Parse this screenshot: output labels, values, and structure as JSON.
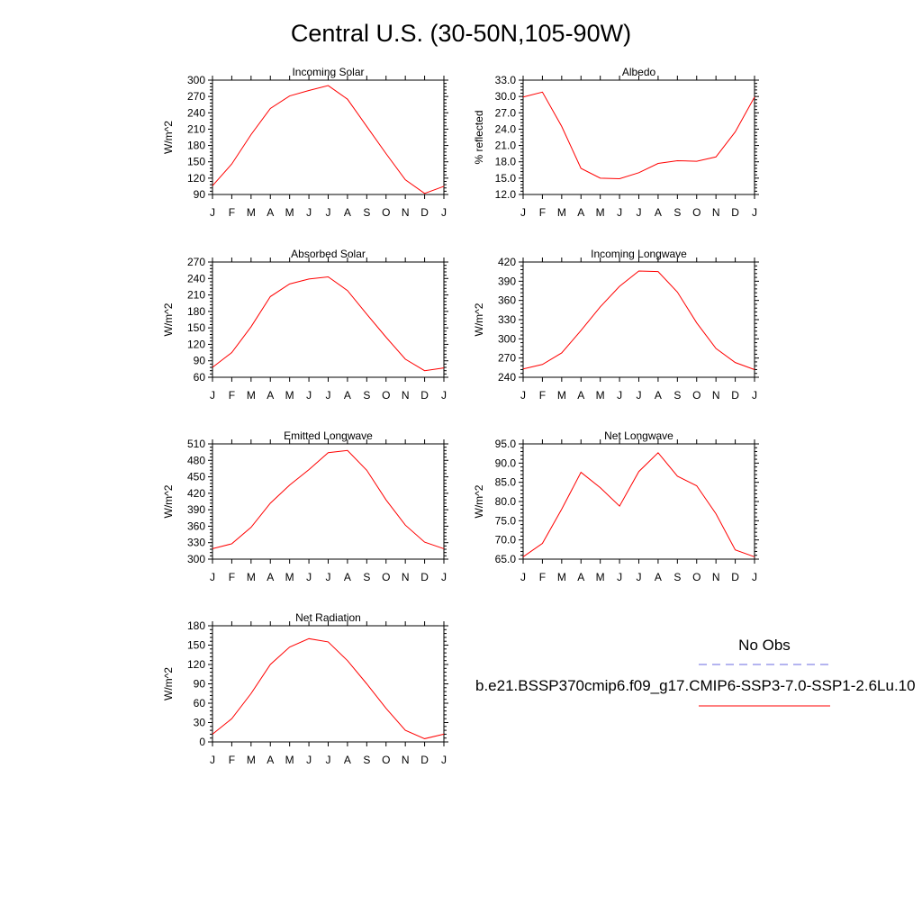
{
  "page_title": "Central U.S. (30-50N,105-90W)",
  "legend": {
    "obs_label": "No Obs",
    "obs_color": "#6a6ae0",
    "model_label": "b.e21.BSSP370cmip6.f09_g17.CMIP6-SSP3-7.0-SSP1-2.6Lu.10",
    "model_color": "#ff0000"
  },
  "chart_data": [
    {
      "type": "line",
      "title": "Incoming Solar",
      "ylabel": "W/m^2",
      "categories": [
        "J",
        "F",
        "M",
        "A",
        "M",
        "J",
        "J",
        "A",
        "S",
        "O",
        "N",
        "D",
        "J"
      ],
      "ylim": [
        90,
        300
      ],
      "yticks": [
        90,
        120,
        150,
        180,
        210,
        240,
        270,
        300
      ],
      "ytick_decimals": 0,
      "series": [
        {
          "values": [
            106,
            146,
            200,
            248,
            271,
            281,
            290,
            265,
            215,
            165,
            117,
            92,
            105
          ]
        }
      ]
    },
    {
      "type": "line",
      "title": "Albedo",
      "ylabel": "% reflected",
      "categories": [
        "J",
        "F",
        "M",
        "A",
        "M",
        "J",
        "J",
        "A",
        "S",
        "O",
        "N",
        "D",
        "J"
      ],
      "ylim": [
        12,
        33
      ],
      "yticks": [
        12,
        15,
        18,
        21,
        24,
        27,
        30,
        33
      ],
      "ytick_decimals": 1,
      "series": [
        {
          "values": [
            29.9,
            30.8,
            24.5,
            16.8,
            15.0,
            14.9,
            16.0,
            17.7,
            18.2,
            18.1,
            18.9,
            23.5,
            29.9
          ]
        }
      ]
    },
    {
      "type": "line",
      "title": "Absorbed Solar",
      "ylabel": "W/m^2",
      "categories": [
        "J",
        "F",
        "M",
        "A",
        "M",
        "J",
        "J",
        "A",
        "S",
        "O",
        "N",
        "D",
        "J"
      ],
      "ylim": [
        60,
        270
      ],
      "yticks": [
        60,
        90,
        120,
        150,
        180,
        210,
        240,
        270
      ],
      "ytick_decimals": 0,
      "series": [
        {
          "values": [
            78,
            105,
            152,
            207,
            230,
            239,
            243,
            218,
            175,
            133,
            93,
            72,
            77
          ]
        }
      ]
    },
    {
      "type": "line",
      "title": "Incoming Longwave",
      "ylabel": "W/m^2",
      "categories": [
        "J",
        "F",
        "M",
        "A",
        "M",
        "J",
        "J",
        "A",
        "S",
        "O",
        "N",
        "D",
        "J"
      ],
      "ylim": [
        240,
        420
      ],
      "yticks": [
        240,
        270,
        300,
        330,
        360,
        390,
        420
      ],
      "ytick_decimals": 0,
      "series": [
        {
          "values": [
            253,
            260,
            278,
            313,
            350,
            382,
            406,
            405,
            373,
            325,
            285,
            263,
            252
          ]
        }
      ]
    },
    {
      "type": "line",
      "title": "Emitted Longwave",
      "ylabel": "W/m^2",
      "categories": [
        "J",
        "F",
        "M",
        "A",
        "M",
        "J",
        "J",
        "A",
        "S",
        "O",
        "N",
        "D",
        "J"
      ],
      "ylim": [
        300,
        510
      ],
      "yticks": [
        300,
        330,
        360,
        390,
        420,
        450,
        480,
        510
      ],
      "ytick_decimals": 0,
      "series": [
        {
          "values": [
            319,
            328,
            358,
            402,
            435,
            463,
            494,
            498,
            462,
            408,
            362,
            331,
            319
          ]
        }
      ]
    },
    {
      "type": "line",
      "title": "Net Longwave",
      "ylabel": "W/m^2",
      "categories": [
        "J",
        "F",
        "M",
        "A",
        "M",
        "J",
        "J",
        "A",
        "S",
        "O",
        "N",
        "D",
        "J"
      ],
      "ylim": [
        65,
        95
      ],
      "yticks": [
        65,
        70,
        75,
        80,
        85,
        90,
        95
      ],
      "ytick_decimals": 1,
      "series": [
        {
          "values": [
            65.6,
            69.1,
            78.0,
            87.6,
            83.6,
            78.8,
            87.8,
            92.7,
            86.6,
            84.1,
            76.8,
            67.4,
            65.6
          ]
        }
      ]
    },
    {
      "type": "line",
      "title": "Net Radiation",
      "ylabel": "W/m^2",
      "categories": [
        "J",
        "F",
        "M",
        "A",
        "M",
        "J",
        "J",
        "A",
        "S",
        "O",
        "N",
        "D",
        "J"
      ],
      "ylim": [
        0,
        180
      ],
      "yticks": [
        0,
        30,
        60,
        90,
        120,
        150,
        180
      ],
      "ytick_decimals": 0,
      "series": [
        {
          "values": [
            12,
            36,
            75,
            120,
            147,
            160,
            155,
            126,
            90,
            52,
            18,
            5,
            12
          ]
        }
      ]
    }
  ]
}
